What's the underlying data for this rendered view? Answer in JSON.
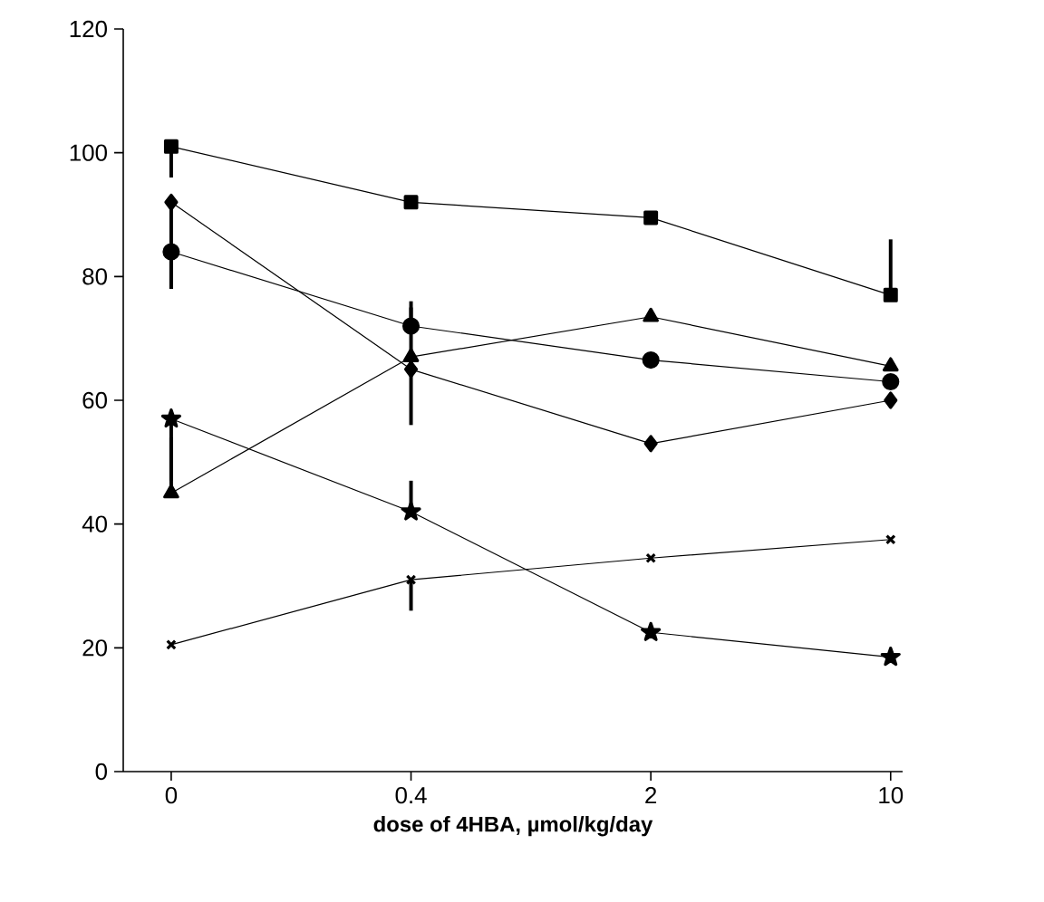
{
  "chart_data": {
    "type": "line",
    "xlabel": "dose of 4HBA, µmol/kg/day",
    "categories": [
      "0",
      "0.4",
      "2",
      "10"
    ],
    "ylim": [
      0,
      120
    ],
    "yticks": [
      0,
      20,
      40,
      60,
      80,
      100,
      120
    ],
    "grid": false,
    "series": [
      {
        "color": "#000000",
        "marker": "square",
        "values": [
          101,
          92,
          89.5,
          77
        ],
        "errors": [
          [
            96,
            101
          ],
          null,
          null,
          [
            77,
            86
          ]
        ]
      },
      {
        "color": "#000000",
        "marker": "circle",
        "values": [
          84,
          72,
          66.5,
          63
        ],
        "errors": [
          [
            78,
            84
          ],
          [
            72,
            75
          ],
          null,
          null
        ]
      },
      {
        "color": "#000000",
        "marker": "diamond",
        "values": [
          92,
          65,
          53,
          60
        ],
        "errors": [
          [
            78,
            92
          ],
          [
            65,
            76
          ],
          null,
          null
        ]
      },
      {
        "color": "#000000",
        "marker": "triangle",
        "values": [
          45,
          67,
          73.5,
          65.5
        ],
        "errors": [
          [
            45,
            54
          ],
          [
            56,
            67
          ],
          null,
          null
        ]
      },
      {
        "color": "#000000",
        "marker": "star",
        "values": [
          57,
          42,
          22.5,
          18.5
        ],
        "errors": [
          [
            47,
            57
          ],
          [
            42,
            47
          ],
          null,
          null
        ]
      },
      {
        "color": "#000000",
        "marker": "cross",
        "values": [
          20.5,
          31,
          34.5,
          37.5
        ],
        "errors": [
          null,
          [
            26,
            31
          ],
          null,
          null
        ]
      }
    ]
  }
}
